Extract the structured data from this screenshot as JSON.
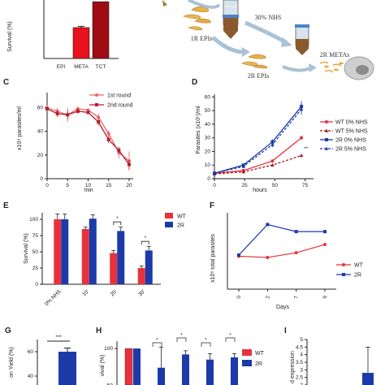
{
  "panel_labels": [
    "C",
    "D",
    "E",
    "F",
    "G",
    "H",
    "I"
  ],
  "colors": {
    "wt": "#e8323b",
    "r2": "#1c3aa8",
    "epi": "#ff2a2a",
    "meta_bar": "#e8111c",
    "tct_bar": "#9e0b12",
    "round1": "#e8636c",
    "round2": "#b3202b",
    "grid": "#888888"
  },
  "schematic": {
    "label_1r": "1R EPIs",
    "label_nhs": "30% NHS",
    "label_2r": "2R EPIs",
    "label_metas": "2R METAs"
  },
  "chart_data": [
    {
      "id": "A_partial",
      "type": "bar",
      "ylabel": "Survival (%)",
      "categories": [
        "EPI",
        "META",
        "TCT"
      ],
      "values": [
        0,
        37,
        68
      ],
      "errors": [
        0,
        1.5,
        0
      ]
    },
    {
      "id": "C",
      "type": "line",
      "xlabel": "min",
      "ylabel": "x10⁴ parasites/ml",
      "xticks": [
        "0",
        "5",
        "10",
        "15",
        "20"
      ],
      "yticks": [
        "0",
        "20",
        "40",
        "60"
      ],
      "xlim": [
        0,
        21
      ],
      "ylim": [
        0,
        70
      ],
      "series": [
        {
          "name": "1st round",
          "x": [
            0,
            2.5,
            5,
            7.5,
            10,
            12.5,
            15,
            17.5,
            20
          ],
          "y": [
            60,
            57,
            54,
            59,
            58,
            52,
            38,
            22,
            15
          ],
          "err": [
            2,
            3,
            6,
            2,
            1,
            3,
            3,
            5,
            8
          ]
        },
        {
          "name": "2nd round",
          "x": [
            0,
            2.5,
            5,
            7.5,
            10,
            12.5,
            15,
            17.5,
            20
          ],
          "y": [
            59,
            55,
            54,
            57,
            56,
            48,
            33,
            24,
            12
          ],
          "err": [
            2,
            3,
            4,
            2,
            1,
            3,
            3,
            3,
            4
          ]
        }
      ]
    },
    {
      "id": "D",
      "type": "line",
      "xlabel": "hours",
      "ylabel": "Parasites (x10⁵)/ml",
      "xticks": [
        "0",
        "25",
        "50",
        "75"
      ],
      "yticks": [
        "0",
        "10",
        "20",
        "30",
        "40",
        "50",
        "60"
      ],
      "xlim": [
        0,
        82
      ],
      "ylim": [
        0,
        62
      ],
      "series": [
        {
          "name": "WT 0% NHS",
          "x": [
            0,
            24,
            48,
            72
          ],
          "y": [
            4,
            6,
            13,
            30
          ],
          "err": [
            0.5,
            0.5,
            1,
            1.5
          ]
        },
        {
          "name": "WT 5% NHS",
          "x": [
            0,
            24,
            48,
            72
          ],
          "y": [
            3.5,
            5,
            10,
            17
          ],
          "err": [
            0.5,
            0.5,
            1,
            1
          ]
        },
        {
          "name": "2R 0% NHS",
          "x": [
            0,
            24,
            48,
            72
          ],
          "y": [
            4,
            10,
            27,
            53
          ],
          "err": [
            0.5,
            1,
            2,
            4
          ]
        },
        {
          "name": "2R 5% NHS",
          "x": [
            0,
            24,
            48,
            72
          ],
          "y": [
            4,
            9,
            25,
            51
          ],
          "err": [
            0.5,
            1,
            2,
            4
          ]
        }
      ],
      "annotation": "**"
    },
    {
      "id": "E",
      "type": "bar",
      "ylabel": "Survival (%)",
      "categories": [
        "0% NHS",
        "10'",
        "20'",
        "30'"
      ],
      "yticks": [
        "0",
        "25",
        "50",
        "75",
        "100"
      ],
      "ylim": [
        0,
        110
      ],
      "series": [
        {
          "name": "WT",
          "values": [
            100,
            85,
            48,
            25
          ],
          "err": [
            8,
            3,
            4,
            3
          ]
        },
        {
          "name": "2R",
          "values": [
            100,
            101,
            82,
            52
          ],
          "err": [
            8,
            6,
            6,
            6
          ]
        }
      ],
      "significance": [
        "*",
        "*"
      ]
    },
    {
      "id": "F",
      "type": "line",
      "xlabel": "Days",
      "ylabel": "x10⁶ total parasites",
      "xticks": [
        "0",
        "2",
        "7",
        "9"
      ],
      "ylim": [
        0,
        13
      ],
      "series": [
        {
          "name": "WT",
          "y": [
            5.6,
            5.4,
            6.2,
            7.6
          ]
        },
        {
          "name": "2R",
          "y": [
            5.8,
            11.0,
            9.8,
            9.8
          ]
        }
      ]
    },
    {
      "id": "G_partial",
      "type": "bar",
      "ylabel": "on Yield (%)",
      "yticks": [
        "40",
        "60"
      ],
      "values": [
        60
      ],
      "err": [
        3
      ],
      "significance": "***"
    },
    {
      "id": "H_partial",
      "type": "bar",
      "ylabel": "vival (%)",
      "yticks": [
        "50",
        "100"
      ],
      "series": [
        {
          "name": "WT"
        },
        {
          "name": "2R"
        }
      ],
      "significance": [
        "*",
        "*",
        "*",
        "*"
      ]
    },
    {
      "id": "I_partial",
      "type": "bar",
      "ylabel": "d expression",
      "yticks": [
        "2",
        "2.5",
        "3",
        "3.5",
        "4",
        "4.5",
        "5"
      ]
    }
  ]
}
